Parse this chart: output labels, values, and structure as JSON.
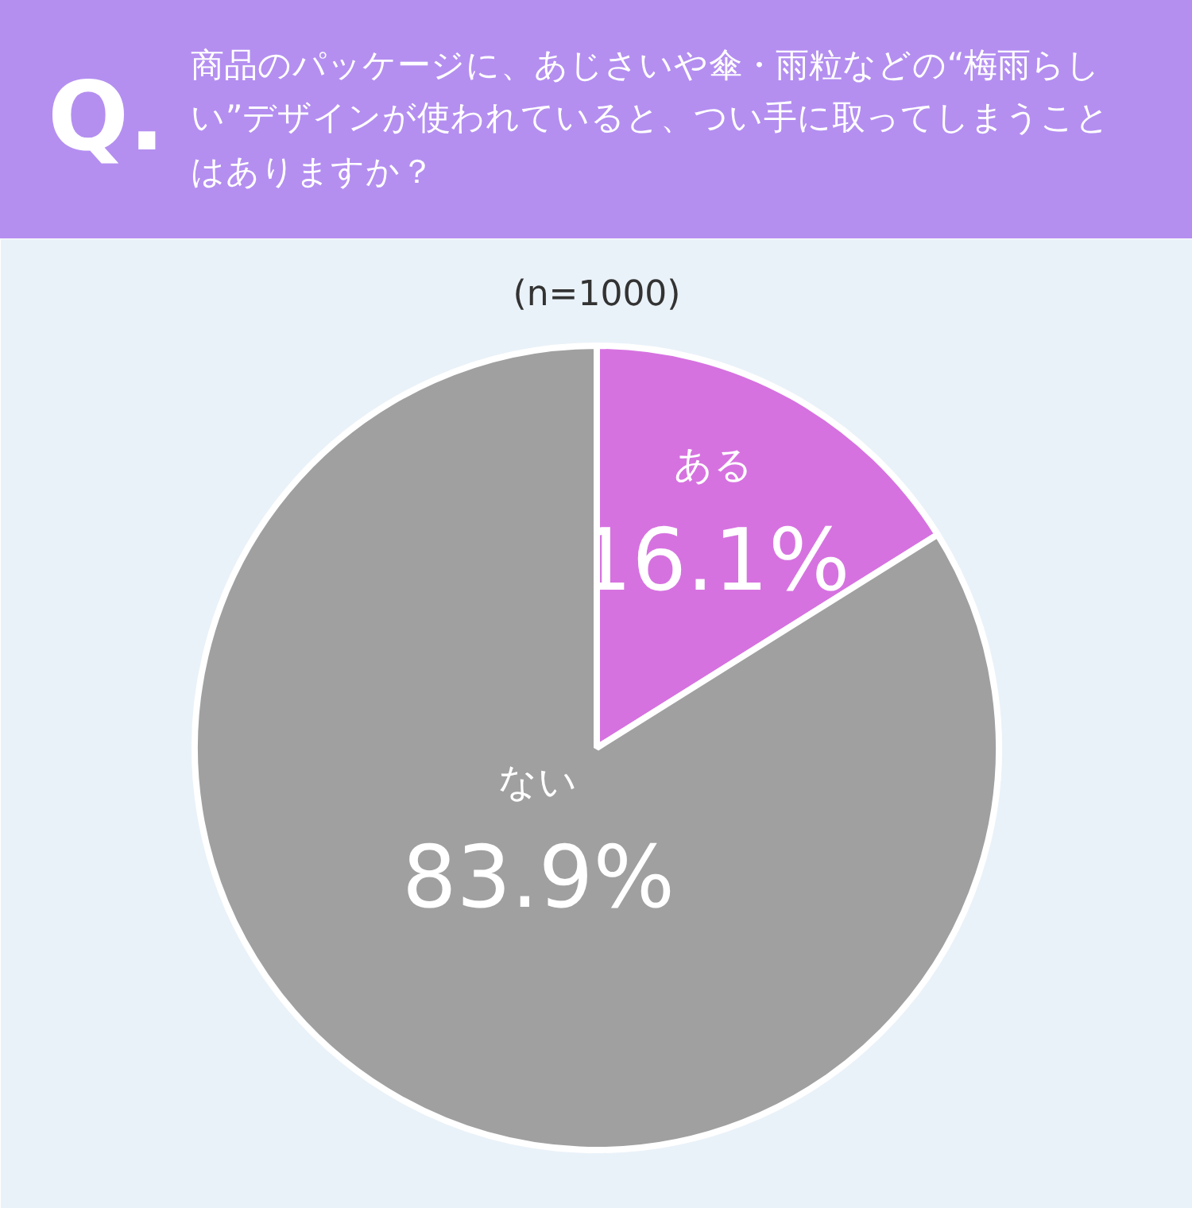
{
  "chart_data": {
    "type": "pie",
    "title": "商品のパッケージに、あじさいや傘・雨粒などの“梅雨らしい”デザインが使われていると、つい手に取ってしまうことはありますか？",
    "subtitle": "(n=1000)",
    "annotations": [
      "Q."
    ],
    "categories": [
      "ある",
      "ない"
    ],
    "values": [
      16.1,
      83.9
    ],
    "colors": [
      "#d672e0",
      "#a0a0a0"
    ],
    "value_labels": [
      "16.1%",
      "83.9%"
    ]
  }
}
